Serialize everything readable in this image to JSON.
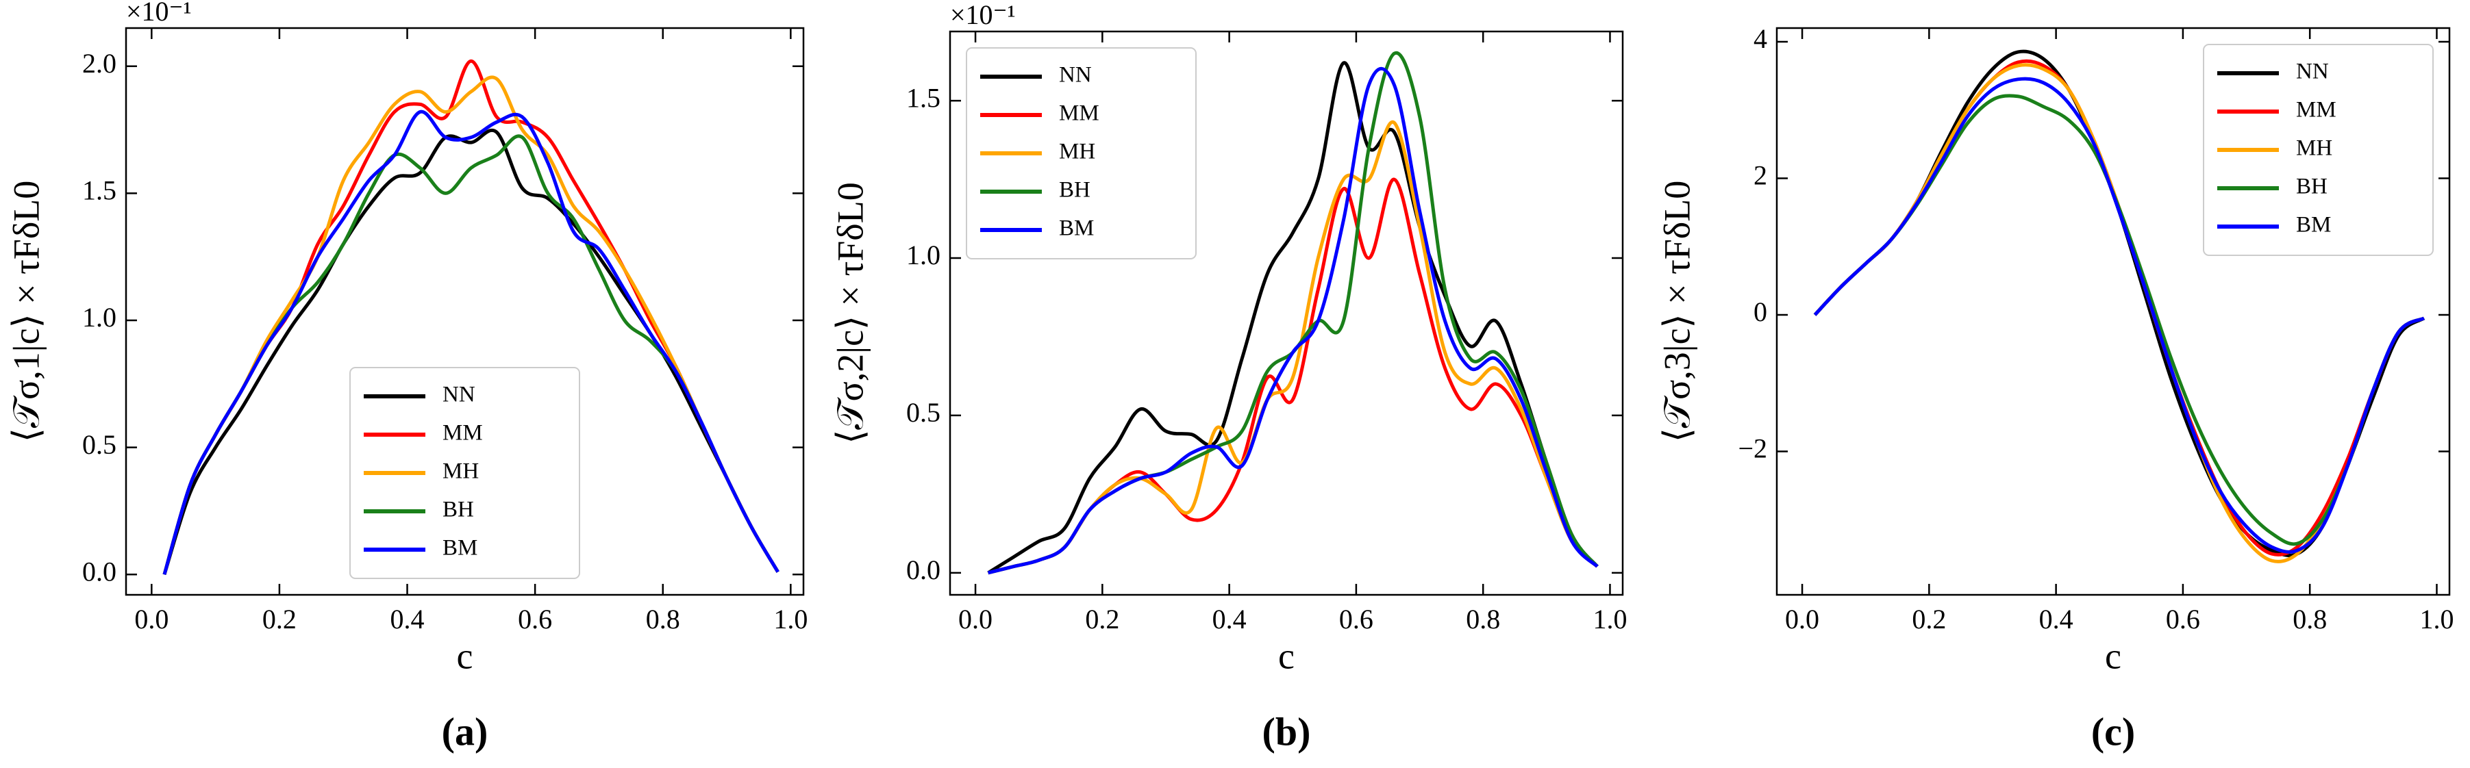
{
  "chart_data": [
    {
      "type": "line",
      "ylabel": "⟨𝒯σ,1|c⟩ × τFδL0",
      "xlabel": "c",
      "scale_note": "×10⁻¹",
      "caption": "(a)",
      "xlim": [
        -0.04,
        1.02
      ],
      "ylim": [
        -0.08,
        2.15
      ],
      "xticks": [
        {
          "value": 0,
          "label": "0.0"
        },
        0.2,
        0.4,
        0.6,
        0.8,
        {
          "value": 1,
          "label": "1.0"
        }
      ],
      "yticks": [
        {
          "value": 0,
          "label": "0.0"
        },
        0.5,
        {
          "value": 1,
          "label": "1.0"
        },
        1.5,
        {
          "value": 2,
          "label": "2.0"
        }
      ],
      "legend": "lower center",
      "x": [
        0.02,
        0.06,
        0.1,
        0.14,
        0.18,
        0.22,
        0.26,
        0.3,
        0.34,
        0.38,
        0.42,
        0.46,
        0.5,
        0.54,
        0.58,
        0.62,
        0.66,
        0.7,
        0.74,
        0.78,
        0.82,
        0.86,
        0.9,
        0.94,
        0.98
      ],
      "series": [
        {
          "name": "NN",
          "color": "#000000",
          "values": [
            0,
            0.32,
            0.5,
            0.65,
            0.82,
            0.98,
            1.12,
            1.3,
            1.45,
            1.56,
            1.58,
            1.72,
            1.7,
            1.74,
            1.52,
            1.48,
            1.38,
            1.25,
            1.1,
            0.95,
            0.78,
            0.58,
            0.38,
            0.18,
            0.01
          ]
        },
        {
          "name": "MM",
          "color": "#ff0000",
          "values": [
            0,
            0.35,
            0.55,
            0.72,
            0.9,
            1.05,
            1.3,
            1.45,
            1.65,
            1.82,
            1.85,
            1.8,
            2.02,
            1.8,
            1.78,
            1.72,
            1.55,
            1.38,
            1.2,
            1.0,
            0.82,
            0.6,
            0.38,
            0.18,
            0.01
          ]
        },
        {
          "name": "MH",
          "color": "#ffa500",
          "values": [
            0,
            0.35,
            0.55,
            0.72,
            0.92,
            1.08,
            1.25,
            1.55,
            1.7,
            1.85,
            1.9,
            1.82,
            1.9,
            1.95,
            1.75,
            1.65,
            1.45,
            1.35,
            1.2,
            1.02,
            0.82,
            0.6,
            0.38,
            0.18,
            0.01
          ]
        },
        {
          "name": "BH",
          "color": "#1a801a",
          "values": [
            0,
            0.35,
            0.55,
            0.72,
            0.9,
            1.05,
            1.15,
            1.3,
            1.5,
            1.65,
            1.6,
            1.5,
            1.6,
            1.65,
            1.72,
            1.5,
            1.4,
            1.2,
            1.0,
            0.92,
            0.8,
            0.6,
            0.38,
            0.18,
            0.01
          ]
        },
        {
          "name": "BM",
          "color": "#0000ff",
          "values": [
            0,
            0.35,
            0.55,
            0.72,
            0.9,
            1.05,
            1.25,
            1.4,
            1.55,
            1.65,
            1.82,
            1.72,
            1.72,
            1.78,
            1.8,
            1.62,
            1.35,
            1.28,
            1.12,
            0.95,
            0.8,
            0.6,
            0.38,
            0.18,
            0.01
          ]
        }
      ]
    },
    {
      "type": "line",
      "ylabel": "⟨𝒯σ,2|c⟩ × τFδL0",
      "xlabel": "c",
      "scale_note": "×10⁻¹",
      "caption": "(b)",
      "xlim": [
        -0.04,
        1.02
      ],
      "ylim": [
        -0.07,
        1.72
      ],
      "xticks": [
        {
          "value": 0,
          "label": "0.0"
        },
        0.2,
        0.4,
        0.6,
        0.8,
        {
          "value": 1,
          "label": "1.0"
        }
      ],
      "yticks": [
        {
          "value": 0,
          "label": "0.0"
        },
        0.5,
        {
          "value": 1,
          "label": "1.0"
        },
        1.5
      ],
      "legend": "upper left",
      "x": [
        0.02,
        0.06,
        0.1,
        0.14,
        0.18,
        0.22,
        0.26,
        0.3,
        0.34,
        0.38,
        0.42,
        0.46,
        0.5,
        0.54,
        0.58,
        0.62,
        0.66,
        0.7,
        0.74,
        0.78,
        0.82,
        0.86,
        0.9,
        0.94,
        0.98
      ],
      "series": [
        {
          "name": "NN",
          "color": "#000000",
          "values": [
            0,
            0.05,
            0.1,
            0.14,
            0.3,
            0.4,
            0.52,
            0.45,
            0.44,
            0.42,
            0.68,
            0.95,
            1.08,
            1.25,
            1.62,
            1.35,
            1.4,
            1.1,
            0.88,
            0.72,
            0.8,
            0.6,
            0.35,
            0.12,
            0.02
          ]
        },
        {
          "name": "MM",
          "color": "#ff0000",
          "values": [
            0,
            0.02,
            0.04,
            0.08,
            0.2,
            0.28,
            0.32,
            0.25,
            0.17,
            0.2,
            0.35,
            0.62,
            0.55,
            0.9,
            1.22,
            1.0,
            1.25,
            0.95,
            0.65,
            0.52,
            0.6,
            0.5,
            0.3,
            0.1,
            0.02
          ]
        },
        {
          "name": "MH",
          "color": "#ffa500",
          "values": [
            0,
            0.02,
            0.04,
            0.08,
            0.2,
            0.28,
            0.3,
            0.25,
            0.2,
            0.46,
            0.35,
            0.55,
            0.62,
            1.0,
            1.25,
            1.25,
            1.43,
            1.1,
            0.7,
            0.6,
            0.65,
            0.52,
            0.3,
            0.1,
            0.02
          ]
        },
        {
          "name": "BH",
          "color": "#1a801a",
          "values": [
            0,
            0.02,
            0.04,
            0.08,
            0.2,
            0.26,
            0.3,
            0.32,
            0.36,
            0.4,
            0.45,
            0.64,
            0.7,
            0.8,
            0.8,
            1.35,
            1.65,
            1.45,
            0.9,
            0.68,
            0.7,
            0.58,
            0.35,
            0.12,
            0.02
          ]
        },
        {
          "name": "BM",
          "color": "#0000ff",
          "values": [
            0,
            0.02,
            0.04,
            0.08,
            0.2,
            0.26,
            0.3,
            0.32,
            0.38,
            0.4,
            0.34,
            0.55,
            0.7,
            0.8,
            1.12,
            1.55,
            1.55,
            1.15,
            0.8,
            0.65,
            0.68,
            0.55,
            0.32,
            0.1,
            0.02
          ]
        }
      ]
    },
    {
      "type": "line",
      "ylabel": "⟨𝒯σ,3|c⟩ × τFδL0",
      "xlabel": "c",
      "caption": "(c)",
      "xlim": [
        -0.04,
        1.02
      ],
      "ylim": [
        -4.1,
        4.2
      ],
      "xticks": [
        {
          "value": 0,
          "label": "0.0"
        },
        0.2,
        0.4,
        0.6,
        0.8,
        {
          "value": 1,
          "label": "1.0"
        }
      ],
      "yticks": [
        {
          "value": -2,
          "label": "−2"
        },
        0,
        2,
        4
      ],
      "legend": "upper right",
      "x": [
        0.02,
        0.06,
        0.1,
        0.14,
        0.18,
        0.22,
        0.26,
        0.3,
        0.34,
        0.38,
        0.42,
        0.46,
        0.5,
        0.54,
        0.58,
        0.62,
        0.66,
        0.7,
        0.74,
        0.78,
        0.82,
        0.86,
        0.9,
        0.94,
        0.98
      ],
      "series": [
        {
          "name": "NN",
          "color": "#000000",
          "values": [
            0,
            0.4,
            0.75,
            1.1,
            1.65,
            2.4,
            3.1,
            3.6,
            3.85,
            3.75,
            3.3,
            2.5,
            1.5,
            0.3,
            -0.9,
            -1.9,
            -2.7,
            -3.2,
            -3.45,
            -3.5,
            -3.1,
            -2.2,
            -1.2,
            -0.3,
            -0.05
          ]
        },
        {
          "name": "MM",
          "color": "#ff0000",
          "values": [
            0,
            0.4,
            0.75,
            1.1,
            1.65,
            2.35,
            3.0,
            3.45,
            3.7,
            3.65,
            3.3,
            2.55,
            1.55,
            0.4,
            -0.75,
            -1.75,
            -2.6,
            -3.2,
            -3.5,
            -3.4,
            -2.9,
            -2.1,
            -1.1,
            -0.25,
            -0.05
          ]
        },
        {
          "name": "MH",
          "color": "#ffa500",
          "values": [
            0,
            0.4,
            0.75,
            1.1,
            1.65,
            2.35,
            3.0,
            3.45,
            3.65,
            3.6,
            3.3,
            2.55,
            1.55,
            0.4,
            -0.75,
            -1.8,
            -2.7,
            -3.3,
            -3.6,
            -3.5,
            -3.0,
            -2.2,
            -1.1,
            -0.25,
            -0.05
          ]
        },
        {
          "name": "BH",
          "color": "#1a801a",
          "values": [
            0,
            0.4,
            0.75,
            1.1,
            1.6,
            2.2,
            2.8,
            3.15,
            3.2,
            3.05,
            2.85,
            2.4,
            1.55,
            0.5,
            -0.6,
            -1.55,
            -2.3,
            -2.85,
            -3.2,
            -3.35,
            -3.0,
            -2.2,
            -1.1,
            -0.25,
            -0.05
          ]
        },
        {
          "name": "BM",
          "color": "#0000ff",
          "values": [
            0,
            0.4,
            0.75,
            1.1,
            1.62,
            2.25,
            2.9,
            3.3,
            3.45,
            3.4,
            3.1,
            2.5,
            1.5,
            0.4,
            -0.75,
            -1.8,
            -2.6,
            -3.1,
            -3.4,
            -3.45,
            -3.1,
            -2.2,
            -1.1,
            -0.25,
            -0.05
          ]
        }
      ]
    }
  ]
}
